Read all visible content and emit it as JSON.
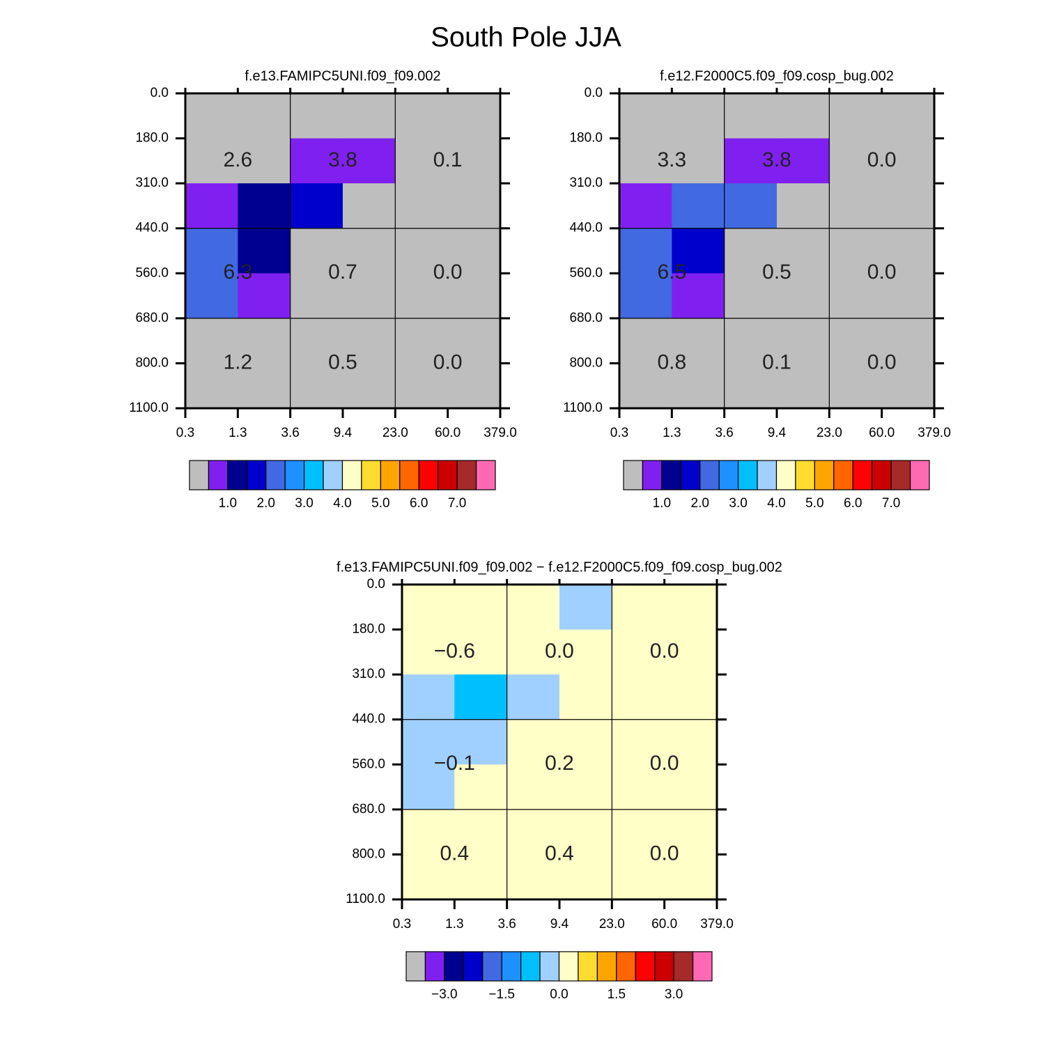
{
  "title": "South Pole JJA",
  "chart_data": [
    {
      "type": "heatmap",
      "title": "f.e13.FAMIPC5UNI.f09_f09.002",
      "x_edges": [
        "0.3",
        "1.3",
        "3.6",
        "9.4",
        "23.0",
        "60.0",
        "379.0"
      ],
      "y_edges": [
        "0.0",
        "180.0",
        "310.0",
        "440.0",
        "560.0",
        "680.0",
        "800.0",
        "1100.0"
      ],
      "values": [
        [
          0.0,
          0.1,
          0.1,
          0.3,
          0.0,
          0.0
        ],
        [
          0.2,
          0.3,
          0.8,
          0.7,
          0.1,
          0.0
        ],
        [
          0.8,
          1.2,
          1.6,
          0.3,
          0.0,
          0.0
        ],
        [
          2.2,
          1.3,
          0.2,
          0.1,
          0.0,
          0.0
        ],
        [
          2.1,
          0.7,
          0.2,
          0.2,
          0.0,
          0.0
        ],
        [
          0.3,
          0.2,
          0.1,
          0.1,
          0.0,
          0.0
        ],
        [
          0.4,
          0.3,
          0.2,
          0.1,
          0.0,
          0.0
        ]
      ],
      "summary": {
        "values": [
          [
            2.6,
            3.8,
            0.1
          ],
          [
            6.3,
            0.7,
            0.0
          ],
          [
            1.2,
            0.5,
            0.0
          ]
        ],
        "value_labels": [
          [
            "2.6",
            "3.8",
            "0.1"
          ],
          [
            "6.3",
            "0.7",
            "0.0"
          ],
          [
            "1.2",
            "0.5",
            "0.0"
          ]
        ]
      },
      "colors": [
        "#bebebe",
        "#8020f0",
        "#000090",
        "#0000cd",
        "#4169e1",
        "#1e90ff",
        "#00bfff",
        "#a0d0ff",
        "#ffffc8",
        "#ffdd30",
        "#ffa500",
        "#ff6600",
        "#ff0000",
        "#cc0000",
        "#a52a2a",
        "#ff69b4"
      ],
      "levels": [
        0.5,
        {
          "value": 1.0,
          "label": "1.0"
        },
        1.5,
        {
          "value": 2.0,
          "label": "2.0"
        },
        2.5,
        {
          "value": 3.0,
          "label": "3.0"
        },
        3.5,
        {
          "value": 4.0,
          "label": "4.0"
        },
        4.5,
        {
          "value": 5.0,
          "label": "5.0"
        },
        5.5,
        {
          "value": 6.0,
          "label": "6.0"
        },
        6.5,
        {
          "value": 7.0,
          "label": "7.0"
        },
        7.5
      ]
    },
    {
      "type": "heatmap",
      "title": "f.e12.F2000C5.f09_f09.cosp_bug.002",
      "x_edges": [
        "0.3",
        "1.3",
        "3.6",
        "9.4",
        "23.0",
        "60.0",
        "379.0"
      ],
      "y_edges": [
        "0.0",
        "180.0",
        "310.0",
        "440.0",
        "560.0",
        "680.0",
        "800.0",
        "1100.0"
      ],
      "values": [
        [
          0.0,
          0.0,
          0.1,
          0.1,
          0.0,
          0.0
        ],
        [
          0.2,
          0.3,
          0.9,
          0.6,
          0.0,
          0.0
        ],
        [
          0.7,
          2.1,
          2.1,
          0.0,
          0.0,
          0.0
        ],
        [
          2.3,
          1.7,
          0.2,
          0.1,
          0.0,
          0.0
        ],
        [
          2.0,
          0.5,
          0.1,
          0.1,
          0.0,
          0.0
        ],
        [
          0.2,
          0.2,
          0.0,
          0.1,
          0.0,
          0.0
        ],
        [
          0.2,
          0.2,
          0.0,
          0.0,
          0.0,
          0.0
        ]
      ],
      "summary": {
        "values": [
          [
            3.3,
            3.8,
            0.0
          ],
          [
            6.5,
            0.5,
            0.0
          ],
          [
            0.8,
            0.1,
            0.0
          ]
        ],
        "value_labels": [
          [
            "3.3",
            "3.8",
            "0.0"
          ],
          [
            "6.5",
            "0.5",
            "0.0"
          ],
          [
            "0.8",
            "0.1",
            "0.0"
          ]
        ]
      },
      "colors": [
        "#bebebe",
        "#8020f0",
        "#000090",
        "#0000cd",
        "#4169e1",
        "#1e90ff",
        "#00bfff",
        "#a0d0ff",
        "#ffffc8",
        "#ffdd30",
        "#ffa500",
        "#ff6600",
        "#ff0000",
        "#cc0000",
        "#a52a2a",
        "#ff69b4"
      ],
      "levels": [
        0.5,
        {
          "value": 1.0,
          "label": "1.0"
        },
        1.5,
        {
          "value": 2.0,
          "label": "2.0"
        },
        2.5,
        {
          "value": 3.0,
          "label": "3.0"
        },
        3.5,
        {
          "value": 4.0,
          "label": "4.0"
        },
        4.5,
        {
          "value": 5.0,
          "label": "5.0"
        },
        5.5,
        {
          "value": 6.0,
          "label": "6.0"
        },
        6.5,
        {
          "value": 7.0,
          "label": "7.0"
        },
        7.5
      ]
    },
    {
      "type": "heatmap",
      "title": "f.e13.FAMIPC5UNI.f09_f09.002 − f.e12.F2000C5.f09_f09.cosp_bug.002",
      "x_edges": [
        "0.3",
        "1.3",
        "3.6",
        "9.4",
        "23.0",
        "60.0",
        "379.0"
      ],
      "y_edges": [
        "0.0",
        "180.0",
        "310.0",
        "440.0",
        "560.0",
        "680.0",
        "800.0",
        "1100.0"
      ],
      "values": [
        [
          0.0,
          0.1,
          0.0,
          -0.1,
          0.0,
          0.0
        ],
        [
          0.1,
          0.2,
          0.0,
          0.2,
          0.0,
          0.0
        ],
        [
          -0.1,
          -0.9,
          -0.4,
          0.3,
          0.0,
          0.0
        ],
        [
          -0.1,
          -0.1,
          0.1,
          0.0,
          0.0,
          0.0
        ],
        [
          -0.2,
          0.3,
          0.1,
          0.0,
          0.0,
          0.0
        ],
        [
          0.1,
          0.0,
          0.2,
          0.0,
          0.0,
          0.0
        ],
        [
          0.2,
          0.1,
          0.2,
          0.0,
          0.0,
          0.0
        ]
      ],
      "summary": {
        "values": [
          [
            -0.6,
            0.0,
            0.0
          ],
          [
            -0.1,
            0.2,
            0.0
          ],
          [
            0.4,
            0.4,
            0.0
          ]
        ],
        "value_labels": [
          [
            "−0.6",
            "0.0",
            "0.0"
          ],
          [
            "−0.1",
            "0.2",
            "0.0"
          ],
          [
            "0.4",
            "0.4",
            "0.0"
          ]
        ]
      },
      "colors": [
        "#bebebe",
        "#8020f0",
        "#000090",
        "#0000cd",
        "#4169e1",
        "#1e90ff",
        "#00bfff",
        "#a0d0ff",
        "#ffffc8",
        "#ffdd30",
        "#ffa500",
        "#ff6600",
        "#ff0000",
        "#cc0000",
        "#a52a2a",
        "#ff69b4"
      ],
      "levels": [
        -3.5,
        {
          "value": -3.0,
          "label": "−3.0"
        },
        -2.5,
        -2.0,
        {
          "value": -1.5,
          "label": "−1.5"
        },
        -1.0,
        -0.5,
        {
          "value": 0.0,
          "label": "0.0"
        },
        0.5,
        1.0,
        {
          "value": 1.5,
          "label": "1.5"
        },
        2.0,
        2.5,
        {
          "value": 3.0,
          "label": "3.0"
        },
        3.5
      ]
    }
  ]
}
